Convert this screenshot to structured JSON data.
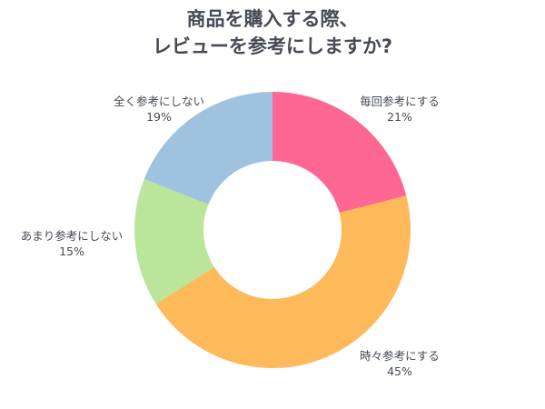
{
  "title": {
    "line1": "商品を購入する際、",
    "line2": "レビューを参考にしますか?"
  },
  "chart_data": {
    "type": "pie",
    "variant": "donut",
    "title": "商品を購入する際、レビューを参考にしますか?",
    "categories": [
      "毎回参考にする",
      "時々参考にする",
      "あまり参考にしない",
      "全く参考にしない"
    ],
    "values": [
      21,
      45,
      15,
      19
    ],
    "unit": "%",
    "colors": [
      "#fe6791",
      "#feb95a",
      "#bbe59a",
      "#9fc2df"
    ],
    "start_angle_deg": 0,
    "direction": "clockwise",
    "legend": "none (direct labels)"
  },
  "labels": [
    {
      "name": "毎回参考にする",
      "value": "21%"
    },
    {
      "name": "時々参考にする",
      "value": "45%"
    },
    {
      "name": "あまり参考にしない",
      "value": "15%"
    },
    {
      "name": "全く参考にしない",
      "value": "19%"
    }
  ]
}
